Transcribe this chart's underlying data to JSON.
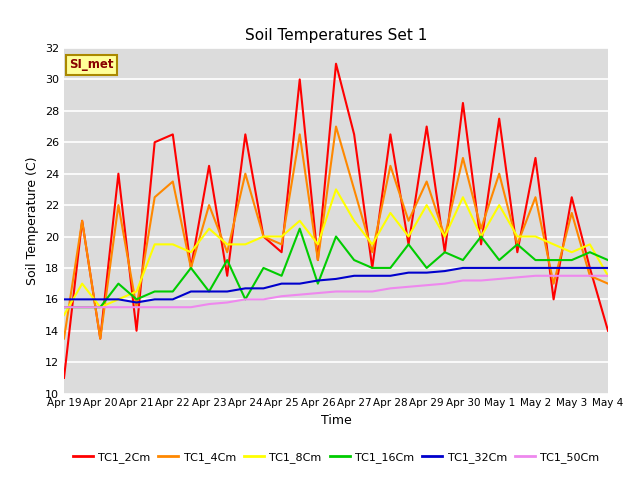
{
  "title": "Soil Temperatures Set 1",
  "xlabel": "Time",
  "ylabel": "Soil Temperature (C)",
  "ylim": [
    10,
    32
  ],
  "yticks": [
    10,
    12,
    14,
    16,
    18,
    20,
    22,
    24,
    26,
    28,
    30,
    32
  ],
  "plot_bg_color": "#dcdcdc",
  "grid_color": "#ffffff",
  "annotation_text": "SI_met",
  "annotation_bg": "#ffff99",
  "annotation_border": "#aa8800",
  "x_labels": [
    "Apr 19",
    "Apr 20",
    "Apr 21",
    "Apr 22",
    "Apr 23",
    "Apr 24",
    "Apr 25",
    "Apr 26",
    "Apr 27",
    "Apr 28",
    "Apr 29",
    "Apr 30",
    "May 1",
    "May 2",
    "May 3",
    "May 4"
  ],
  "series": {
    "TC1_2Cm": {
      "color": "#ff0000",
      "data": [
        11.0,
        21.0,
        13.5,
        24.0,
        14.0,
        26.0,
        26.5,
        18.0,
        24.5,
        17.5,
        26.5,
        20.0,
        19.0,
        30.0,
        18.5,
        31.0,
        26.5,
        18.0,
        26.5,
        19.5,
        27.0,
        19.0,
        28.5,
        19.5,
        27.5,
        19.0,
        25.0,
        16.0,
        22.5,
        18.0,
        14.0
      ]
    },
    "TC1_4Cm": {
      "color": "#ff8800",
      "data": [
        13.5,
        21.0,
        13.5,
        22.0,
        15.5,
        22.5,
        23.5,
        18.0,
        22.0,
        19.0,
        24.0,
        20.0,
        19.5,
        26.5,
        18.5,
        27.0,
        23.0,
        19.0,
        24.5,
        21.0,
        23.5,
        20.0,
        25.0,
        20.5,
        24.0,
        19.5,
        22.5,
        17.0,
        21.5,
        17.5,
        17.0
      ]
    },
    "TC1_8Cm": {
      "color": "#ffff00",
      "data": [
        15.0,
        17.0,
        15.5,
        16.0,
        16.5,
        19.5,
        19.5,
        19.0,
        20.5,
        19.5,
        19.5,
        20.0,
        20.0,
        21.0,
        19.5,
        23.0,
        21.0,
        19.5,
        21.5,
        20.0,
        22.0,
        20.0,
        22.5,
        20.0,
        22.0,
        20.0,
        20.0,
        19.5,
        19.0,
        19.5,
        17.5
      ]
    },
    "TC1_16Cm": {
      "color": "#00cc00",
      "data": [
        15.5,
        15.5,
        15.5,
        17.0,
        16.0,
        16.5,
        16.5,
        18.0,
        16.5,
        18.5,
        16.0,
        18.0,
        17.5,
        20.5,
        17.0,
        20.0,
        18.5,
        18.0,
        18.0,
        19.5,
        18.0,
        19.0,
        18.5,
        20.0,
        18.5,
        19.5,
        18.5,
        18.5,
        18.5,
        19.0,
        18.5
      ]
    },
    "TC1_32Cm": {
      "color": "#0000cc",
      "data": [
        16.0,
        16.0,
        16.0,
        16.0,
        15.8,
        16.0,
        16.0,
        16.5,
        16.5,
        16.5,
        16.7,
        16.7,
        17.0,
        17.0,
        17.2,
        17.3,
        17.5,
        17.5,
        17.5,
        17.7,
        17.7,
        17.8,
        18.0,
        18.0,
        18.0,
        18.0,
        18.0,
        18.0,
        18.0,
        18.0,
        18.0
      ]
    },
    "TC1_50Cm": {
      "color": "#ee88ee",
      "data": [
        15.5,
        15.5,
        15.5,
        15.5,
        15.5,
        15.5,
        15.5,
        15.5,
        15.7,
        15.8,
        16.0,
        16.0,
        16.2,
        16.3,
        16.4,
        16.5,
        16.5,
        16.5,
        16.7,
        16.8,
        16.9,
        17.0,
        17.2,
        17.2,
        17.3,
        17.4,
        17.5,
        17.5,
        17.5,
        17.5,
        17.5
      ]
    }
  },
  "legend_order": [
    "TC1_2Cm",
    "TC1_4Cm",
    "TC1_8Cm",
    "TC1_16Cm",
    "TC1_32Cm",
    "TC1_50Cm"
  ]
}
